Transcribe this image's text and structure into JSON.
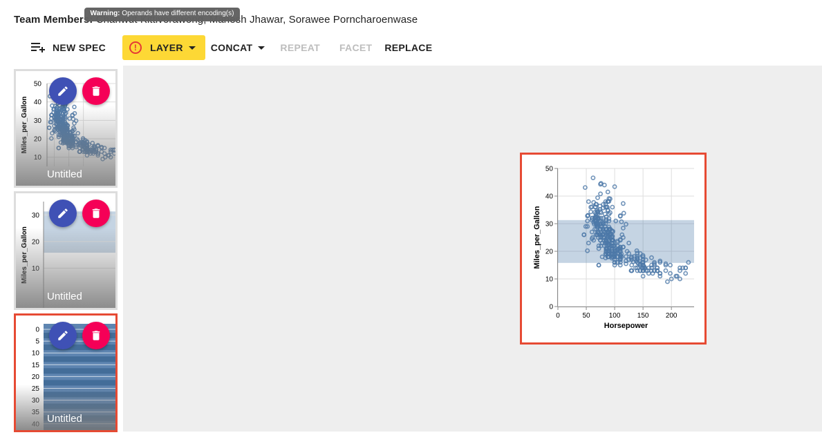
{
  "header": {
    "team_label": "Team Members:",
    "team_names": "Chanwut Kittivorawong, Manesh Jhawar, Sorawee Porncharoenwase"
  },
  "tooltip": {
    "prefix": "Warning:",
    "message": "Operands have different encoding(s)"
  },
  "toolbar": {
    "new_spec": "NEW SPEC",
    "layer": "LAYER",
    "concat": "CONCAT",
    "repeat": "REPEAT",
    "facet": "FACET",
    "replace": "REPLACE"
  },
  "sidebar": {
    "specs": [
      {
        "title": "Untitled",
        "ylabel": "Miles_per_Gallon",
        "ticks": [
          "50",
          "40",
          "30",
          "20",
          "10"
        ]
      },
      {
        "title": "Untitled",
        "ylabel": "Miles_per_Gallon",
        "ticks": [
          "30",
          "20",
          "10"
        ]
      },
      {
        "title": "Untitled",
        "ticks": [
          "0",
          "5",
          "10",
          "15",
          "20",
          "25",
          "30",
          "35",
          "40"
        ]
      }
    ]
  },
  "colors": {
    "accent_yellow": "#fdd835",
    "selected_border": "#e64a33",
    "edit_fab": "#3f51b5",
    "delete_fab": "#f50057",
    "mark": "#4c78a8"
  },
  "chart_data": {
    "type": "scatter",
    "xlabel": "Horsepower",
    "ylabel": "Miles_per_Gallon",
    "xlim": [
      0,
      240
    ],
    "ylim": [
      0,
      50
    ],
    "x_ticks": [
      "0",
      "50",
      "100",
      "150",
      "200"
    ],
    "y_ticks": [
      "0",
      "10",
      "20",
      "30",
      "40",
      "50"
    ],
    "band": {
      "y_from": 15.8,
      "y_to": 31.3
    },
    "grid": true,
    "points": [
      [
        130,
        18
      ],
      [
        165,
        15
      ],
      [
        150,
        18
      ],
      [
        150,
        16
      ],
      [
        140,
        17
      ],
      [
        198,
        15
      ],
      [
        220,
        14
      ],
      [
        215,
        14
      ],
      [
        225,
        14
      ],
      [
        190,
        15
      ],
      [
        170,
        15
      ],
      [
        160,
        14
      ],
      [
        150,
        15
      ],
      [
        225,
        14
      ],
      [
        95,
        24
      ],
      [
        95,
        22
      ],
      [
        97,
        18
      ],
      [
        85,
        21
      ],
      [
        88,
        27
      ],
      [
        46,
        26
      ],
      [
        87,
        25
      ],
      [
        90,
        24
      ],
      [
        95,
        25
      ],
      [
        113,
        26
      ],
      [
        90,
        21
      ],
      [
        215,
        10
      ],
      [
        200,
        10
      ],
      [
        210,
        11
      ],
      [
        193,
        9
      ],
      [
        88,
        27
      ],
      [
        90,
        28
      ],
      [
        95,
        25
      ],
      [
        100,
        19
      ],
      [
        105,
        16
      ],
      [
        100,
        17
      ],
      [
        88,
        19
      ],
      [
        100,
        18
      ],
      [
        165,
        14
      ],
      [
        175,
        14
      ],
      [
        153,
        14
      ],
      [
        150,
        14
      ],
      [
        180,
        12
      ],
      [
        170,
        13
      ],
      [
        175,
        13
      ],
      [
        110,
        18
      ],
      [
        72,
        22
      ],
      [
        100,
        19
      ],
      [
        88,
        18
      ],
      [
        86,
        23
      ],
      [
        90,
        28
      ],
      [
        70,
        30
      ],
      [
        76,
        30
      ],
      [
        65,
        31
      ],
      [
        69,
        35
      ],
      [
        60,
        27
      ],
      [
        70,
        26
      ],
      [
        95,
        24
      ],
      [
        80,
        25
      ],
      [
        54,
        23
      ],
      [
        90,
        20
      ],
      [
        86,
        21
      ],
      [
        165,
        13
      ],
      [
        175,
        14
      ],
      [
        150,
        15
      ],
      [
        153,
        14
      ],
      [
        150,
        17
      ],
      [
        208,
        11
      ],
      [
        155,
        13
      ],
      [
        160,
        12
      ],
      [
        190,
        13
      ],
      [
        97,
        19
      ],
      [
        150,
        15
      ],
      [
        130,
        13
      ],
      [
        140,
        13
      ],
      [
        150,
        14
      ],
      [
        112,
        18
      ],
      [
        76,
        22
      ],
      [
        87,
        21
      ],
      [
        69,
        26
      ],
      [
        86,
        22
      ],
      [
        92,
        28
      ],
      [
        97,
        23
      ],
      [
        80,
        28
      ],
      [
        88,
        27
      ],
      [
        175,
        13
      ],
      [
        150,
        14
      ],
      [
        145,
        13
      ],
      [
        137,
        14
      ],
      [
        150,
        15
      ],
      [
        198,
        12
      ],
      [
        150,
        13
      ],
      [
        158,
        13
      ],
      [
        150,
        14
      ],
      [
        215,
        13
      ],
      [
        225,
        12
      ],
      [
        175,
        13
      ],
      [
        105,
        18
      ],
      [
        100,
        16
      ],
      [
        100,
        18
      ],
      [
        88,
        18
      ],
      [
        95,
        23
      ],
      [
        46,
        26
      ],
      [
        150,
        11
      ],
      [
        167,
        12
      ],
      [
        170,
        13
      ],
      [
        180,
        12
      ],
      [
        100,
        18
      ],
      [
        88,
        20
      ],
      [
        72,
        21
      ],
      [
        94,
        22
      ],
      [
        90,
        18
      ],
      [
        85,
        19
      ],
      [
        107,
        21
      ],
      [
        90,
        26
      ],
      [
        145,
        15
      ],
      [
        230,
        16
      ],
      [
        49,
        29
      ],
      [
        75,
        24
      ],
      [
        91,
        20
      ],
      [
        112,
        19
      ],
      [
        150,
        15
      ],
      [
        110,
        24
      ],
      [
        122,
        20
      ],
      [
        180,
        11
      ],
      [
        95,
        20
      ],
      [
        100,
        19
      ],
      [
        100,
        15
      ],
      [
        67,
        31
      ],
      [
        80,
        26
      ],
      [
        65,
        32
      ],
      [
        75,
        25
      ],
      [
        100,
        16
      ],
      [
        110,
        16
      ],
      [
        105,
        18
      ],
      [
        140,
        16
      ],
      [
        150,
        13
      ],
      [
        150,
        14
      ],
      [
        140,
        14
      ],
      [
        150,
        14
      ],
      [
        83,
        29
      ],
      [
        67,
        26
      ],
      [
        78,
        26
      ],
      [
        52,
        31
      ],
      [
        61,
        32
      ],
      [
        75,
        28
      ],
      [
        75,
        24
      ],
      [
        75,
        26
      ],
      [
        97,
        24
      ],
      [
        93,
        26
      ],
      [
        67,
        31
      ],
      [
        95,
        19
      ],
      [
        105,
        18
      ],
      [
        72,
        15
      ],
      [
        72,
        15
      ],
      [
        170,
        16
      ],
      [
        145,
        15
      ],
      [
        150,
        16
      ],
      [
        148,
        14
      ],
      [
        110,
        17
      ],
      [
        105,
        16
      ],
      [
        110,
        15
      ],
      [
        95,
        18
      ],
      [
        110,
        21
      ],
      [
        110,
        20
      ],
      [
        129,
        13
      ],
      [
        75,
        29
      ],
      [
        83,
        23
      ],
      [
        100,
        20
      ],
      [
        78,
        23
      ],
      [
        96,
        24
      ],
      [
        71,
        25
      ],
      [
        97,
        24
      ],
      [
        97,
        18
      ],
      [
        70,
        29
      ],
      [
        90,
        19
      ],
      [
        95,
        23
      ],
      [
        88,
        23
      ],
      [
        98,
        22
      ],
      [
        115,
        25
      ],
      [
        53,
        33
      ],
      [
        86,
        28
      ],
      [
        81,
        25
      ],
      [
        92,
        25
      ],
      [
        79,
        26
      ],
      [
        83,
        27
      ],
      [
        140,
        17.5
      ],
      [
        150,
        16
      ],
      [
        120,
        15.5
      ],
      [
        152,
        14.5
      ],
      [
        100,
        22
      ],
      [
        105,
        22
      ],
      [
        81,
        24
      ],
      [
        90,
        22.5
      ],
      [
        52,
        29
      ],
      [
        60,
        24.5
      ],
      [
        70,
        29
      ],
      [
        53,
        33
      ],
      [
        100,
        20
      ],
      [
        78,
        18
      ],
      [
        110,
        18.5
      ],
      [
        95,
        17.5
      ],
      [
        71,
        29.5
      ],
      [
        70,
        32
      ],
      [
        75,
        28
      ],
      [
        72,
        26.5
      ],
      [
        102,
        20
      ],
      [
        150,
        13
      ],
      [
        88,
        19
      ],
      [
        108,
        19
      ],
      [
        120,
        16.5
      ],
      [
        180,
        16.5
      ],
      [
        145,
        13
      ],
      [
        130,
        13
      ],
      [
        150,
        13
      ],
      [
        68,
        31.5
      ],
      [
        80,
        30
      ],
      [
        58,
        36
      ],
      [
        96,
        25.5
      ],
      [
        70,
        33.5
      ],
      [
        145,
        17.5
      ],
      [
        110,
        17
      ],
      [
        145,
        15.5
      ],
      [
        130,
        15
      ],
      [
        110,
        17.5
      ],
      [
        105,
        20.5
      ],
      [
        100,
        19
      ],
      [
        98,
        18.5
      ],
      [
        180,
        16
      ],
      [
        170,
        15.5
      ],
      [
        190,
        15.5
      ],
      [
        149,
        16
      ],
      [
        78,
        29
      ],
      [
        88,
        24.5
      ],
      [
        75,
        26
      ],
      [
        89,
        25.5
      ],
      [
        63,
        30.5
      ],
      [
        83,
        33.5
      ],
      [
        67,
        30
      ],
      [
        78,
        30.5
      ],
      [
        97,
        22
      ],
      [
        110,
        21.5
      ],
      [
        110,
        21.5
      ],
      [
        48,
        43.1
      ],
      [
        66,
        36.1
      ],
      [
        52,
        32.8
      ],
      [
        70,
        39.4
      ],
      [
        60,
        36.1
      ],
      [
        110,
        19.9
      ],
      [
        140,
        19.4
      ],
      [
        139,
        20.2
      ],
      [
        105,
        19.2
      ],
      [
        95,
        20.5
      ],
      [
        85,
        20.2
      ],
      [
        88,
        25.1
      ],
      [
        100,
        20.5
      ],
      [
        90,
        19.4
      ],
      [
        105,
        20.6
      ],
      [
        85,
        20.8
      ],
      [
        110,
        18.6
      ],
      [
        120,
        18.1
      ],
      [
        145,
        19.2
      ],
      [
        165,
        17.7
      ],
      [
        139,
        18.1
      ],
      [
        140,
        17.5
      ],
      [
        68,
        30
      ],
      [
        95,
        27.5
      ],
      [
        97,
        27.2
      ],
      [
        75,
        30.9
      ],
      [
        95,
        21.1
      ],
      [
        105,
        23.2
      ],
      [
        85,
        23.8
      ],
      [
        97,
        23.9
      ],
      [
        103,
        20.3
      ],
      [
        125,
        17
      ],
      [
        115,
        21.6
      ],
      [
        133,
        16.2
      ],
      [
        71,
        31.5
      ],
      [
        68,
        29.5
      ],
      [
        115,
        21.5
      ],
      [
        85,
        19.8
      ],
      [
        88,
        22.3
      ],
      [
        90,
        20.2
      ],
      [
        110,
        20.6
      ],
      [
        130,
        17
      ],
      [
        129,
        17.6
      ],
      [
        138,
        16.5
      ],
      [
        135,
        18.2
      ],
      [
        155,
        16.9
      ],
      [
        142,
        15.5
      ],
      [
        125,
        19.2
      ],
      [
        150,
        18.5
      ],
      [
        71,
        31.9
      ],
      [
        65,
        34.1
      ],
      [
        80,
        35.7
      ],
      [
        80,
        27.4
      ],
      [
        77,
        25.4
      ],
      [
        125,
        23
      ],
      [
        71,
        27.2
      ],
      [
        90,
        23.9
      ],
      [
        70,
        34.2
      ],
      [
        70,
        34.5
      ],
      [
        90,
        31.8
      ],
      [
        115,
        37.3
      ],
      [
        115,
        28.4
      ],
      [
        90,
        28.8
      ],
      [
        70,
        26.8
      ],
      [
        90,
        33.5
      ],
      [
        88,
        41.5
      ],
      [
        90,
        38.1
      ],
      [
        72,
        32.1
      ],
      [
        84,
        37.2
      ],
      [
        84,
        28
      ],
      [
        92,
        26.4
      ],
      [
        110,
        24.3
      ],
      [
        84,
        19.1
      ],
      [
        58,
        34.3
      ],
      [
        64,
        29.8
      ],
      [
        60,
        31.3
      ],
      [
        67,
        37
      ],
      [
        65,
        32.2
      ],
      [
        62,
        46.6
      ],
      [
        68,
        27.9
      ],
      [
        75,
        40.8
      ],
      [
        75,
        44.3
      ],
      [
        100,
        43.4
      ],
      [
        74,
        36.4
      ],
      [
        80,
        30
      ],
      [
        76,
        44.6
      ],
      [
        116,
        33.8
      ],
      [
        120,
        29.8
      ],
      [
        110,
        32.7
      ],
      [
        105,
        23.7
      ],
      [
        88,
        35
      ],
      [
        85,
        32.4
      ],
      [
        88,
        27.2
      ],
      [
        88,
        26.6
      ],
      [
        88,
        25.8
      ],
      [
        85,
        23.5
      ],
      [
        84,
        30
      ],
      [
        90,
        39.1
      ],
      [
        92,
        39
      ],
      [
        74,
        35.1
      ],
      [
        68,
        32.3
      ],
      [
        68,
        37
      ],
      [
        63,
        37.7
      ],
      [
        70,
        34.1
      ],
      [
        88,
        34.7
      ],
      [
        75,
        34.4
      ],
      [
        70,
        29.9
      ],
      [
        67,
        33
      ],
      [
        67,
        33.7
      ],
      [
        67,
        32.4
      ],
      [
        110,
        32.9
      ],
      [
        85,
        31.6
      ],
      [
        92,
        28.1
      ],
      [
        112,
        30.7
      ],
      [
        96,
        25.4
      ],
      [
        84,
        24.2
      ],
      [
        90,
        22.4
      ],
      [
        86,
        26.6
      ],
      [
        52,
        20.2
      ],
      [
        84,
        17.6
      ],
      [
        79,
        28
      ],
      [
        82,
        27
      ],
      [
        76,
        34
      ],
      [
        90,
        31
      ],
      [
        69,
        29
      ],
      [
        90,
        27
      ],
      [
        63,
        24
      ],
      [
        86,
        36
      ],
      [
        80,
        37
      ],
      [
        102,
        31
      ],
      [
        88,
        38
      ],
      [
        66,
        36
      ],
      [
        87,
        36
      ],
      [
        96,
        36
      ],
      [
        92,
        34
      ],
      [
        88,
        38
      ],
      [
        60,
        32
      ],
      [
        54,
        38
      ],
      [
        61,
        25
      ],
      [
        84,
        38
      ],
      [
        79,
        26
      ],
      [
        82,
        22
      ],
      [
        76,
        32
      ],
      [
        84,
        36
      ],
      [
        88,
        27
      ],
      [
        96,
        27
      ],
      [
        82,
        44
      ],
      [
        80,
        32
      ],
      [
        65,
        28
      ],
      [
        85,
        31
      ]
    ]
  }
}
